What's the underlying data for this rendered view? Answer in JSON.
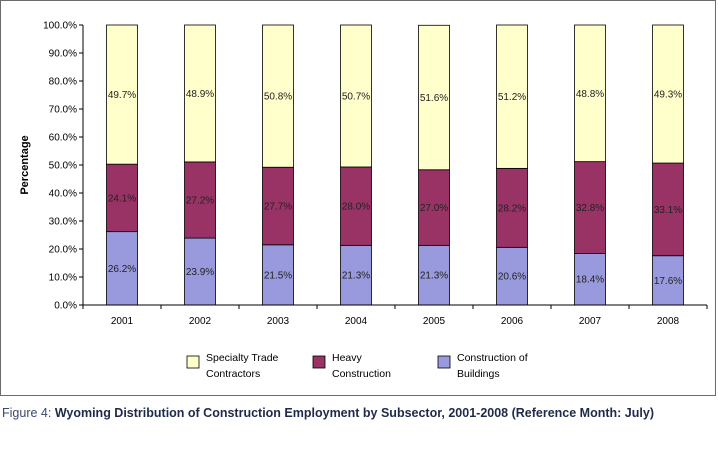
{
  "caption": {
    "lead": "Figure 4: ",
    "title": "Wyoming Distribution of Construction Employment by Subsector, 2001-2008 (Reference Month: July)"
  },
  "chart_data": {
    "type": "bar",
    "stacked": true,
    "categories": [
      "2001",
      "2002",
      "2003",
      "2004",
      "2005",
      "2006",
      "2007",
      "2008"
    ],
    "series": [
      {
        "name": "Construction of Buildings",
        "color": "#9999dd",
        "values": [
          26.2,
          23.9,
          21.5,
          21.3,
          21.3,
          20.6,
          18.4,
          17.6
        ]
      },
      {
        "name": "Heavy Construction",
        "color": "#993366",
        "values": [
          24.1,
          27.2,
          27.7,
          28.0,
          27.0,
          28.2,
          32.8,
          33.1
        ]
      },
      {
        "name": "Specialty Trade Contractors",
        "color": "#ffffcc",
        "values": [
          49.7,
          48.9,
          50.8,
          50.7,
          51.6,
          51.2,
          48.8,
          49.3
        ]
      }
    ],
    "data_labels": {
      "buildings": [
        "26.2%",
        "23.9%",
        "21.5%",
        "21.3%",
        "21.3%",
        "20.6%",
        "18.4%",
        "17.6%"
      ],
      "heavy": [
        "24.1%",
        "27.2%",
        "27.7%",
        "28.0%",
        "27.0%",
        "28.2%",
        "32.8%",
        "33.1%"
      ],
      "specialty": [
        "49.7%",
        "48.9%",
        "50.8%",
        "50.7%",
        "51.6%",
        "51.2%",
        "48.8%",
        "49.3%"
      ]
    },
    "ylabel": "Percentage",
    "ylim": [
      0,
      100
    ],
    "yticks": [
      "0.0%",
      "10.0%",
      "20.0%",
      "30.0%",
      "40.0%",
      "50.0%",
      "60.0%",
      "70.0%",
      "80.0%",
      "90.0%",
      "100.0%"
    ],
    "grid": false,
    "legend": {
      "placement": "bottom",
      "items": [
        {
          "line1": "Specialty Trade",
          "line2": "Contractors",
          "color": "#ffffcc"
        },
        {
          "line1": "Heavy",
          "line2": "Construction",
          "color": "#993366"
        },
        {
          "line1": "Construction of",
          "line2": "Buildings",
          "color": "#9999dd"
        }
      ]
    }
  }
}
